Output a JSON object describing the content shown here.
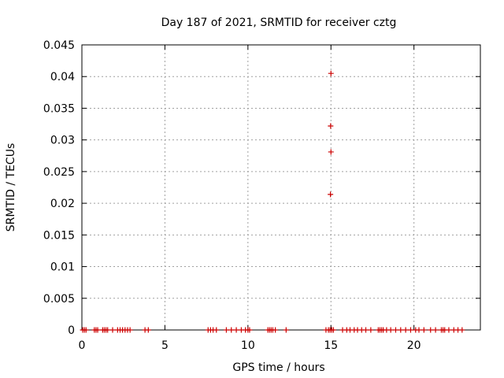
{
  "chart_data": {
    "type": "scatter",
    "title": "Day 187 of 2021, SRMTID for receiver cztg",
    "xlabel": "GPS time / hours",
    "ylabel": "SRMTID / TECUs",
    "xlim": [
      0,
      24
    ],
    "ylim": [
      0,
      0.045
    ],
    "xticks": [
      0,
      5,
      10,
      15,
      20
    ],
    "xtick_labels": [
      "0",
      "5",
      "10",
      "15",
      "20"
    ],
    "yticks": [
      0,
      0.005,
      0.01,
      0.015,
      0.02,
      0.025,
      0.03,
      0.035,
      0.04,
      0.045
    ],
    "ytick_labels": [
      "0",
      "0.005",
      "0.01",
      "0.015",
      "0.02",
      "0.025",
      "0.03",
      "0.035",
      "0.04",
      "0.045"
    ],
    "grid": true,
    "marker": "+",
    "series": [
      {
        "name": "SRMTID",
        "color": "#cc0000",
        "points": [
          {
            "x": 15.0,
            "y": 0.0405
          },
          {
            "x": 14.98,
            "y": 0.0322
          },
          {
            "x": 15.0,
            "y": 0.0281
          },
          {
            "x": 14.97,
            "y": 0.0214
          },
          {
            "x": 0.05,
            "y": 0
          },
          {
            "x": 0.15,
            "y": 0
          },
          {
            "x": 0.25,
            "y": 0
          },
          {
            "x": 0.75,
            "y": 0
          },
          {
            "x": 0.85,
            "y": 0
          },
          {
            "x": 0.95,
            "y": 0
          },
          {
            "x": 1.25,
            "y": 0
          },
          {
            "x": 1.35,
            "y": 0
          },
          {
            "x": 1.45,
            "y": 0
          },
          {
            "x": 1.55,
            "y": 0
          },
          {
            "x": 1.85,
            "y": 0
          },
          {
            "x": 2.15,
            "y": 0
          },
          {
            "x": 2.3,
            "y": 0
          },
          {
            "x": 2.45,
            "y": 0
          },
          {
            "x": 2.6,
            "y": 0
          },
          {
            "x": 2.75,
            "y": 0
          },
          {
            "x": 2.9,
            "y": 0
          },
          {
            "x": 3.8,
            "y": 0
          },
          {
            "x": 4.0,
            "y": 0
          },
          {
            "x": 7.6,
            "y": 0
          },
          {
            "x": 7.75,
            "y": 0
          },
          {
            "x": 7.9,
            "y": 0
          },
          {
            "x": 8.1,
            "y": 0
          },
          {
            "x": 8.7,
            "y": 0
          },
          {
            "x": 9.0,
            "y": 0
          },
          {
            "x": 9.3,
            "y": 0
          },
          {
            "x": 9.6,
            "y": 0
          },
          {
            "x": 9.85,
            "y": 0
          },
          {
            "x": 10.0,
            "y": 0
          },
          {
            "x": 10.1,
            "y": 0
          },
          {
            "x": 11.2,
            "y": 0
          },
          {
            "x": 11.3,
            "y": 0
          },
          {
            "x": 11.4,
            "y": 0
          },
          {
            "x": 11.5,
            "y": 0
          },
          {
            "x": 11.65,
            "y": 0
          },
          {
            "x": 12.3,
            "y": 0
          },
          {
            "x": 14.7,
            "y": 0
          },
          {
            "x": 14.85,
            "y": 0
          },
          {
            "x": 14.95,
            "y": 0
          },
          {
            "x": 15.05,
            "y": 0
          },
          {
            "x": 15.15,
            "y": 0
          },
          {
            "x": 15.7,
            "y": 0
          },
          {
            "x": 15.95,
            "y": 0
          },
          {
            "x": 16.15,
            "y": 0
          },
          {
            "x": 16.4,
            "y": 0
          },
          {
            "x": 16.6,
            "y": 0
          },
          {
            "x": 16.85,
            "y": 0
          },
          {
            "x": 17.1,
            "y": 0
          },
          {
            "x": 17.4,
            "y": 0
          },
          {
            "x": 17.85,
            "y": 0
          },
          {
            "x": 17.95,
            "y": 0
          },
          {
            "x": 18.05,
            "y": 0
          },
          {
            "x": 18.15,
            "y": 0
          },
          {
            "x": 18.35,
            "y": 0
          },
          {
            "x": 18.6,
            "y": 0
          },
          {
            "x": 18.9,
            "y": 0
          },
          {
            "x": 19.2,
            "y": 0
          },
          {
            "x": 19.5,
            "y": 0
          },
          {
            "x": 19.8,
            "y": 0
          },
          {
            "x": 20.1,
            "y": 0
          },
          {
            "x": 20.3,
            "y": 0
          },
          {
            "x": 20.6,
            "y": 0
          },
          {
            "x": 21.0,
            "y": 0
          },
          {
            "x": 21.3,
            "y": 0
          },
          {
            "x": 21.65,
            "y": 0
          },
          {
            "x": 21.75,
            "y": 0
          },
          {
            "x": 21.85,
            "y": 0
          },
          {
            "x": 22.1,
            "y": 0
          },
          {
            "x": 22.4,
            "y": 0
          },
          {
            "x": 22.65,
            "y": 0
          },
          {
            "x": 22.9,
            "y": 0
          }
        ]
      }
    ]
  }
}
